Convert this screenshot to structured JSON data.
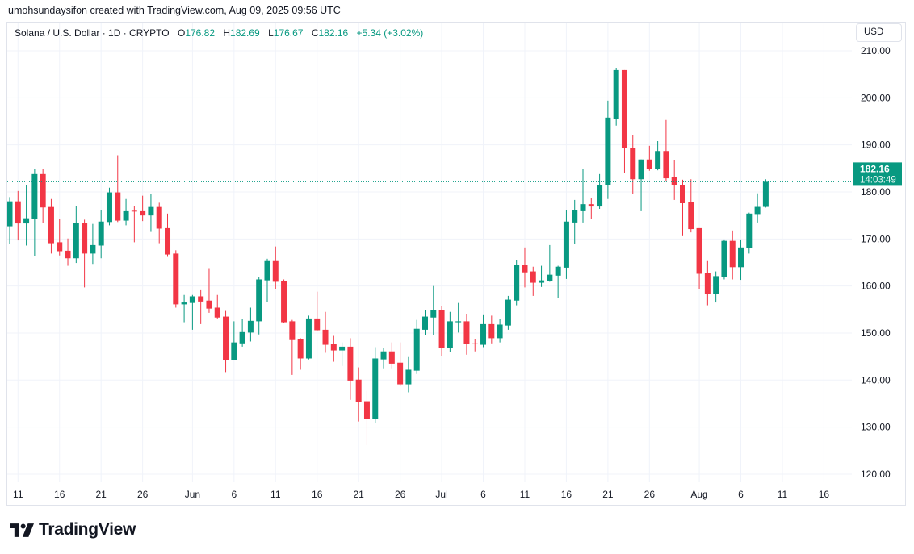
{
  "attribution": "umohsundaysifon created with TradingView.com, Aug 09, 2025 09:56 UTC",
  "legend": {
    "symbol": "Solana / U.S. Dollar · 1D · CRYPTO",
    "o_label": "O",
    "o": "176.82",
    "h_label": "H",
    "h": "182.69",
    "l_label": "L",
    "l": "176.67",
    "c_label": "C",
    "c": "182.16",
    "change": "+5.34 (+3.02%)"
  },
  "currency_button": "USD",
  "last_price": {
    "price": "182.16",
    "countdown": "14:03:49"
  },
  "logo_text": "TradingView",
  "colors": {
    "up": "#089981",
    "down": "#F23645",
    "grid": "#f0f3fa",
    "text": "#131722"
  },
  "chart_data": {
    "type": "candlestick",
    "title": "Solana / U.S. Dollar · 1D · CRYPTO",
    "start_date": "2025-05-10",
    "interval": "1D",
    "ylim": [
      118,
      212
    ],
    "y_ticks": [
      "120.00",
      "130.00",
      "140.00",
      "150.00",
      "160.00",
      "170.00",
      "180.00",
      "190.00",
      "200.00",
      "210.00"
    ],
    "y_tick_values": [
      120,
      130,
      140,
      150,
      160,
      170,
      180,
      190,
      200,
      210
    ],
    "x_ticks": [
      {
        "label": "11",
        "index": 1
      },
      {
        "label": "16",
        "index": 6
      },
      {
        "label": "21",
        "index": 11
      },
      {
        "label": "26",
        "index": 16
      },
      {
        "label": "Jun",
        "index": 22
      },
      {
        "label": "6",
        "index": 27
      },
      {
        "label": "11",
        "index": 32
      },
      {
        "label": "16",
        "index": 37
      },
      {
        "label": "21",
        "index": 42
      },
      {
        "label": "26",
        "index": 47
      },
      {
        "label": "Jul",
        "index": 52
      },
      {
        "label": "6",
        "index": 57
      },
      {
        "label": "11",
        "index": 62
      },
      {
        "label": "16",
        "index": 67
      },
      {
        "label": "21",
        "index": 72
      },
      {
        "label": "26",
        "index": 77
      },
      {
        "label": "Aug",
        "index": 83
      },
      {
        "label": "6",
        "index": 88
      },
      {
        "label": "11",
        "index": 93
      },
      {
        "label": "16",
        "index": 98
      }
    ],
    "ohlc_fields": [
      "open",
      "high",
      "low",
      "close"
    ],
    "candles": [
      [
        172.7,
        178.9,
        169.0,
        178.0
      ],
      [
        178.0,
        180.2,
        169.7,
        173.3
      ],
      [
        173.3,
        181.4,
        168.6,
        174.4
      ],
      [
        174.3,
        184.9,
        166.4,
        183.8
      ],
      [
        183.8,
        184.9,
        173.4,
        176.7
      ],
      [
        176.8,
        178.5,
        166.9,
        169.1
      ],
      [
        169.3,
        174.3,
        166.5,
        167.4
      ],
      [
        167.5,
        170.1,
        164.3,
        165.9
      ],
      [
        165.9,
        177.0,
        164.9,
        173.4
      ],
      [
        173.4,
        174.1,
        159.7,
        166.9
      ],
      [
        166.9,
        173.2,
        164.7,
        168.7
      ],
      [
        168.6,
        176.1,
        165.9,
        173.7
      ],
      [
        173.6,
        180.9,
        172.9,
        179.9
      ],
      [
        179.9,
        187.8,
        173.6,
        173.9
      ],
      [
        173.9,
        178.5,
        172.9,
        175.9
      ],
      [
        176.0,
        177.0,
        169.3,
        175.9
      ],
      [
        175.9,
        179.2,
        173.8,
        175.0
      ],
      [
        175.0,
        179.5,
        171.5,
        176.8
      ],
      [
        176.8,
        177.7,
        169.1,
        172.2
      ],
      [
        172.3,
        175.4,
        166.2,
        166.7
      ],
      [
        166.9,
        167.6,
        155.4,
        156.1
      ],
      [
        156.1,
        158.1,
        152.3,
        156.5
      ],
      [
        156.4,
        158.1,
        150.7,
        157.8
      ],
      [
        157.8,
        159.1,
        151.9,
        156.7
      ],
      [
        156.9,
        163.8,
        154.3,
        155.2
      ],
      [
        155.4,
        158.1,
        153.1,
        153.3
      ],
      [
        153.5,
        154.7,
        141.7,
        144.2
      ],
      [
        144.2,
        152.5,
        144.2,
        148.0
      ],
      [
        147.8,
        153.0,
        147.1,
        150.2
      ],
      [
        150.1,
        155.4,
        148.2,
        152.6
      ],
      [
        152.5,
        161.9,
        149.7,
        161.4
      ],
      [
        161.2,
        165.8,
        156.6,
        165.3
      ],
      [
        165.3,
        168.4,
        159.3,
        160.9
      ],
      [
        161.0,
        161.4,
        152.1,
        152.3
      ],
      [
        152.5,
        152.8,
        141.1,
        148.5
      ],
      [
        148.7,
        148.9,
        142.2,
        144.6
      ],
      [
        144.6,
        153.7,
        144.4,
        153.1
      ],
      [
        153.1,
        158.8,
        150.4,
        150.6
      ],
      [
        150.7,
        154.5,
        145.8,
        147.5
      ],
      [
        147.7,
        149.4,
        143.9,
        146.3
      ],
      [
        146.3,
        148.0,
        143.0,
        147.1
      ],
      [
        147.1,
        148.9,
        135.8,
        139.9
      ],
      [
        140.1,
        142.7,
        131.2,
        135.3
      ],
      [
        135.5,
        137.7,
        126.2,
        131.7
      ],
      [
        131.7,
        147.0,
        130.9,
        144.6
      ],
      [
        144.4,
        146.8,
        142.5,
        146.1
      ],
      [
        146.1,
        148.0,
        142.5,
        143.5
      ],
      [
        143.7,
        148.0,
        138.7,
        139.1
      ],
      [
        139.1,
        144.9,
        137.4,
        142.2
      ],
      [
        142.0,
        152.8,
        141.3,
        150.9
      ],
      [
        150.7,
        154.9,
        149.5,
        153.5
      ],
      [
        153.3,
        160.0,
        149.5,
        154.9
      ],
      [
        154.9,
        155.7,
        145.1,
        146.8
      ],
      [
        146.8,
        154.5,
        145.9,
        152.5
      ],
      [
        152.3,
        156.4,
        150.1,
        152.5
      ],
      [
        152.5,
        154.0,
        145.4,
        147.7
      ],
      [
        147.8,
        148.7,
        146.1,
        147.7
      ],
      [
        147.5,
        153.8,
        147.0,
        151.9
      ],
      [
        151.9,
        153.7,
        147.8,
        148.9
      ],
      [
        148.9,
        153.0,
        148.0,
        151.8
      ],
      [
        151.6,
        157.9,
        150.7,
        157.1
      ],
      [
        156.9,
        165.5,
        155.9,
        164.5
      ],
      [
        164.5,
        168.2,
        159.7,
        162.9
      ],
      [
        163.1,
        164.1,
        157.9,
        160.7
      ],
      [
        160.7,
        164.3,
        159.8,
        161.2
      ],
      [
        161.0,
        168.7,
        160.9,
        162.4
      ],
      [
        162.2,
        164.3,
        157.4,
        164.1
      ],
      [
        163.9,
        176.1,
        161.5,
        173.7
      ],
      [
        173.5,
        178.3,
        168.9,
        176.1
      ],
      [
        175.9,
        184.8,
        173.5,
        177.4
      ],
      [
        177.4,
        178.8,
        174.2,
        176.9
      ],
      [
        176.9,
        183.8,
        176.4,
        181.5
      ],
      [
        181.4,
        199.4,
        178.5,
        195.8
      ],
      [
        195.6,
        206.4,
        194.1,
        205.9
      ],
      [
        205.9,
        205.9,
        184.1,
        189.3
      ],
      [
        189.4,
        192.0,
        179.5,
        182.7
      ],
      [
        182.7,
        186.9,
        175.9,
        186.9
      ],
      [
        186.9,
        189.8,
        184.5,
        184.8
      ],
      [
        184.8,
        190.8,
        184.6,
        188.7
      ],
      [
        188.7,
        195.3,
        182.2,
        182.9
      ],
      [
        183.1,
        186.7,
        178.3,
        181.4
      ],
      [
        181.5,
        182.6,
        170.6,
        177.6
      ],
      [
        177.8,
        182.7,
        171.4,
        172.1
      ],
      [
        172.3,
        172.3,
        159.4,
        162.6
      ],
      [
        162.7,
        165.3,
        155.9,
        158.3
      ],
      [
        158.3,
        163.1,
        156.5,
        162.1
      ],
      [
        161.9,
        169.9,
        161.4,
        169.6
      ],
      [
        169.6,
        171.8,
        161.4,
        164.0
      ],
      [
        164.0,
        169.9,
        161.3,
        168.2
      ],
      [
        168.1,
        175.6,
        166.9,
        175.4
      ],
      [
        175.3,
        179.7,
        173.5,
        176.82
      ],
      [
        176.82,
        182.69,
        176.67,
        182.16
      ]
    ],
    "last_price": 182.16,
    "grid": true
  }
}
